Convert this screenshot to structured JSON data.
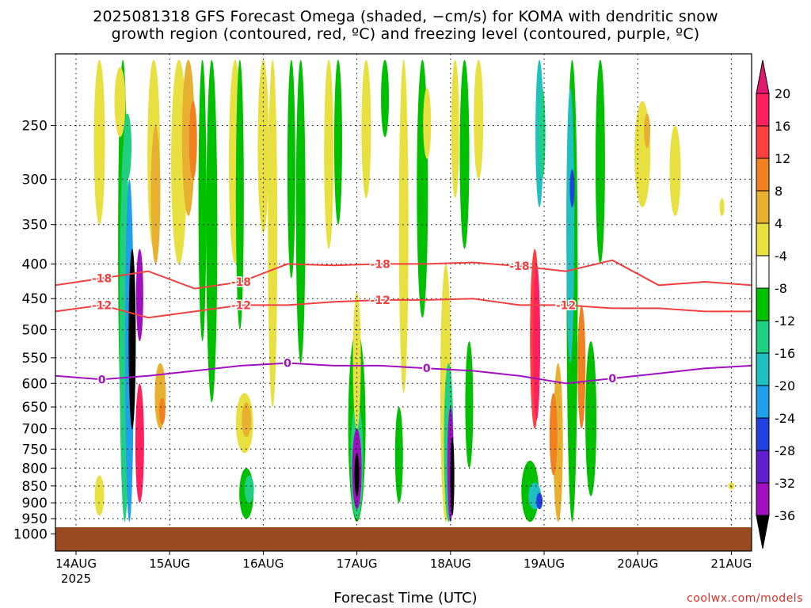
{
  "chart_data": {
    "type": "heatmap",
    "title_line1": "2025081318 GFS Forecast Omega (shaded, −cm/s) for KOMA with dendritic snow",
    "title_line2": "growth region (contoured, red, ºC) and freezing level (contoured, purple, ºC)",
    "xlabel": "Forecast Time (UTC)",
    "x_ticks": [
      "14AUG",
      "15AUG",
      "16AUG",
      "17AUG",
      "18AUG",
      "19AUG",
      "20AUG",
      "21AUG"
    ],
    "x_year": "2025",
    "y_ticks": [
      250,
      300,
      350,
      400,
      450,
      500,
      550,
      600,
      650,
      700,
      750,
      800,
      850,
      900,
      950,
      1000
    ],
    "y_scale": "log pressure (hPa), surface at bottom",
    "colorbar": {
      "levels": [
        20,
        16,
        12,
        8,
        4,
        -4,
        -8,
        -12,
        -16,
        -20,
        -24,
        -28,
        -32,
        -36
      ],
      "colors": [
        "#ff2060",
        "#ff4040",
        "#f08020",
        "#e8b030",
        "#e8e040",
        "#ffffff",
        "#00c000",
        "#20d080",
        "#20c0c0",
        "#20a0e8",
        "#2040e0",
        "#6020d0",
        "#a010c0",
        "#a0a0a0",
        "#000000"
      ],
      "top_arrow_color": "#e01870",
      "bottom_arrow_color": "#000000"
    },
    "contours": {
      "minus18": {
        "label": "-18",
        "color": "#f04040",
        "pressure_hPa": [
          430,
          420,
          410,
          435,
          425,
          400,
          402,
          400,
          400,
          398,
          403,
          410,
          395,
          430,
          425,
          430
        ]
      },
      "minus12": {
        "label": "-12",
        "color": "#f04040",
        "pressure_hPa": [
          470,
          460,
          480,
          470,
          460,
          460,
          455,
          452,
          452,
          450,
          460,
          460,
          465,
          465,
          470,
          470
        ]
      },
      "zero": {
        "label": "0",
        "color": "#a010c0",
        "pressure_hPa": [
          585,
          592,
          585,
          575,
          565,
          560,
          565,
          565,
          570,
          575,
          585,
          600,
          590,
          580,
          570,
          565
        ]
      }
    },
    "grid": true,
    "ground_color": "#9a4a20",
    "credit": "coolwx.com/models"
  }
}
